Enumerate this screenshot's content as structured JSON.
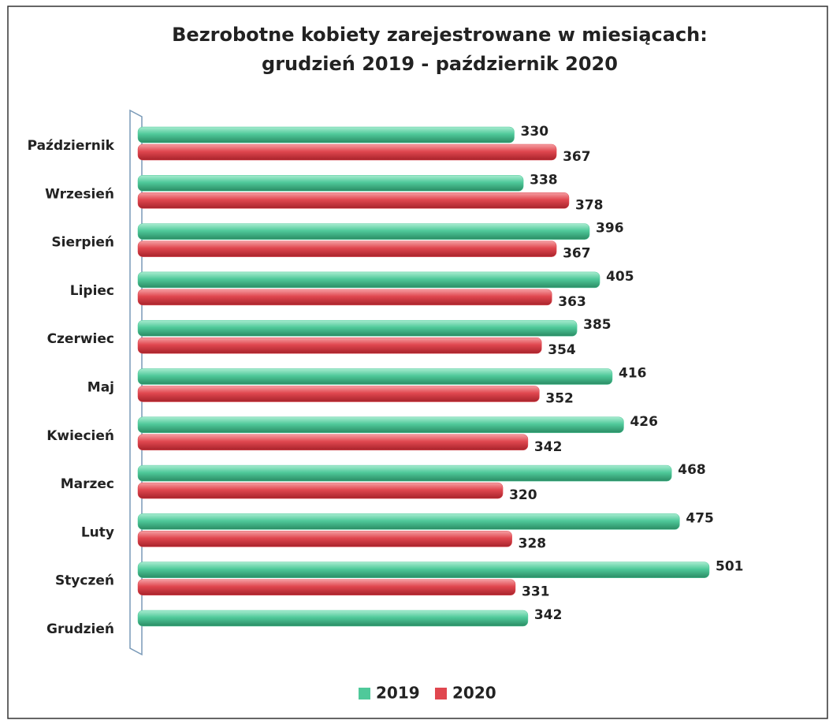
{
  "chart_data": {
    "type": "bar",
    "orientation": "horizontal",
    "title": [
      "Bezrobotne kobiety zarejestrowane w miesiącach:",
      "grudzień 2019 - październik 2020"
    ],
    "categories": [
      "Październik",
      "Wrzesień",
      "Sierpień",
      "Lipiec",
      "Czerwiec",
      "Maj",
      "Kwiecień",
      "Marzec",
      "Luty",
      "Styczeń",
      "Grudzień"
    ],
    "series": [
      {
        "name": "2019",
        "color": "#4fc99a",
        "values": [
          330,
          338,
          396,
          405,
          385,
          416,
          426,
          468,
          475,
          501,
          342
        ]
      },
      {
        "name": "2020",
        "color": "#e0474f",
        "values": [
          367,
          378,
          367,
          363,
          354,
          352,
          342,
          320,
          328,
          331,
          null
        ]
      }
    ],
    "legend": "bottom"
  }
}
